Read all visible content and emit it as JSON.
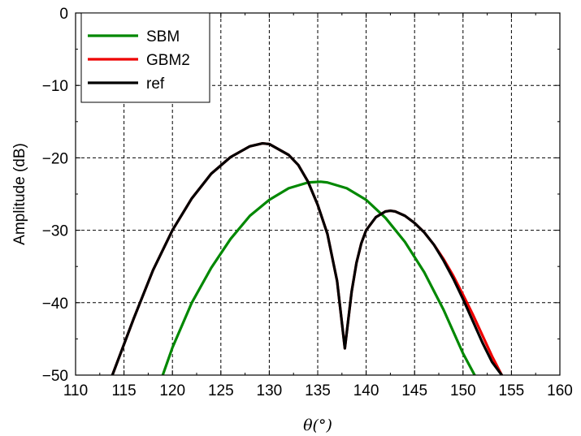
{
  "chart_data": {
    "type": "line",
    "title": "",
    "xlabel": "θ(°)",
    "ylabel": "Amplitude (dB)",
    "xlim": [
      110,
      160
    ],
    "ylim": [
      -50,
      0
    ],
    "xticks": [
      110,
      115,
      120,
      125,
      130,
      135,
      140,
      145,
      150,
      155,
      160
    ],
    "yticks": [
      0,
      -10,
      -20,
      -30,
      -40,
      -50
    ],
    "xtick_labels": [
      "110",
      "115",
      "120",
      "125",
      "130",
      "135",
      "140",
      "145",
      "150",
      "155",
      "160"
    ],
    "ytick_labels": [
      "0",
      "−10",
      "−20",
      "−30",
      "−40",
      "−50"
    ],
    "grid": true,
    "legend_position": "top-left",
    "series": [
      {
        "name": "SBM",
        "color": "#008800",
        "x": [
          119.0,
          120.0,
          122.0,
          124.0,
          126.0,
          128.0,
          130.0,
          132.0,
          134.0,
          135.3,
          136.0,
          138.0,
          140.0,
          142.0,
          144.0,
          146.0,
          148.0,
          150.0,
          151.2
        ],
        "y": [
          -50.0,
          -46.2,
          -40.0,
          -35.2,
          -31.2,
          -28.0,
          -25.8,
          -24.2,
          -23.4,
          -23.3,
          -23.4,
          -24.2,
          -25.8,
          -28.3,
          -31.6,
          -35.8,
          -41.0,
          -47.0,
          -50.0
        ]
      },
      {
        "name": "GBM2",
        "color": "#ee0000",
        "x": [
          113.8,
          116.0,
          118.0,
          120.0,
          122.0,
          124.0,
          126.0,
          128.0,
          129.3,
          130.0,
          132.0,
          133.0,
          134.0,
          135.0,
          136.0,
          137.0,
          137.8,
          138.5,
          139.0,
          139.5,
          140.0,
          141.0,
          142.0,
          142.5,
          143.0,
          144.0,
          145.0,
          146.0,
          147.0,
          148.0,
          149.0,
          150.0,
          151.0,
          152.0,
          153.0,
          154.0,
          154.6
        ],
        "y": [
          -50.0,
          -42.2,
          -35.5,
          -30.0,
          -25.6,
          -22.2,
          -19.9,
          -18.4,
          -18.0,
          -18.1,
          -19.6,
          -21.0,
          -23.3,
          -26.5,
          -30.5,
          -37.0,
          -46.3,
          -38.5,
          -34.5,
          -31.8,
          -30.0,
          -28.2,
          -27.4,
          -27.3,
          -27.4,
          -28.0,
          -29.0,
          -30.3,
          -32.0,
          -34.0,
          -36.3,
          -38.9,
          -41.6,
          -44.5,
          -47.4,
          -50.0,
          -51.6
        ]
      },
      {
        "name": "ref",
        "color": "#000000",
        "x": [
          113.8,
          116.0,
          118.0,
          120.0,
          122.0,
          124.0,
          126.0,
          128.0,
          129.3,
          130.0,
          132.0,
          133.0,
          134.0,
          135.0,
          136.0,
          137.0,
          137.8,
          138.5,
          139.0,
          139.5,
          140.0,
          141.0,
          142.0,
          142.5,
          143.0,
          144.0,
          145.0,
          146.0,
          147.0,
          148.0,
          149.0,
          150.0,
          151.0,
          152.0,
          153.0,
          154.0,
          154.3
        ],
        "y": [
          -50.0,
          -42.2,
          -35.5,
          -30.0,
          -25.6,
          -22.2,
          -19.9,
          -18.4,
          -18.0,
          -18.1,
          -19.6,
          -21.0,
          -23.3,
          -26.5,
          -30.5,
          -37.0,
          -46.3,
          -38.5,
          -34.5,
          -31.8,
          -30.0,
          -28.2,
          -27.4,
          -27.3,
          -27.4,
          -28.0,
          -29.0,
          -30.3,
          -32.0,
          -34.2,
          -36.7,
          -39.5,
          -42.5,
          -45.5,
          -48.2,
          -50.0,
          -50.8
        ]
      }
    ]
  }
}
